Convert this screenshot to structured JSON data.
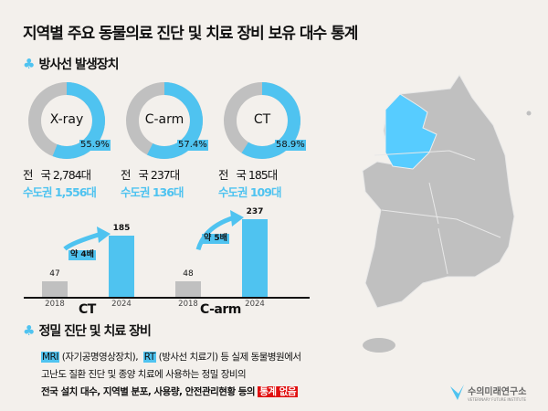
{
  "title": "지역별 주요 동물의료 진단 및 치료 장비 보유 대수 통계",
  "section1": "방사선 발생장치",
  "donuts": [
    {
      "label": "X-ray",
      "percent": 55.9,
      "percent_text": "55.9%",
      "national": "전   국 2,784대",
      "capital": "수도권 1,556대"
    },
    {
      "label": "C-arm",
      "percent": 57.4,
      "percent_text": "57.4%",
      "national": "전   국 237대",
      "capital": "수도권 136대"
    },
    {
      "label": "CT",
      "percent": 58.9,
      "percent_text": "58.9%",
      "national": "전   국 185대",
      "capital": "수도권 109대"
    }
  ],
  "bars": [
    {
      "name": "CT",
      "years": [
        "2018",
        "2024"
      ],
      "values": [
        47,
        185
      ],
      "value_text": [
        "47",
        "185"
      ],
      "growth": "약 4배"
    },
    {
      "name": "C-arm",
      "years": [
        "2018",
        "2024"
      ],
      "values": [
        48,
        237
      ],
      "value_text": [
        "48",
        "237"
      ],
      "growth": "약 5배"
    }
  ],
  "section2": "정밀 진단 및 치료 장비",
  "body": {
    "mri": "MRI",
    "mri_desc": "(자기공명영상장치),",
    "rt": "RT",
    "rt_desc": "(방사선 치료기) 등 실제 동물병원에서",
    "line2": "고난도 질환 진단 및 종양 치료에 사용하는 정밀 장비의",
    "line3": "전국 설치 대수, 지역별 분포, 사용량, 안전관리현황 등의",
    "no_stats": "통계 없음"
  },
  "logo": {
    "name": "수의미래연구소",
    "sub": "VETERINARY FUTURE INSTITUTE"
  },
  "colors": {
    "accent": "#4fc3f0",
    "gray": "#c0c0c0",
    "red": "#e01010"
  }
}
